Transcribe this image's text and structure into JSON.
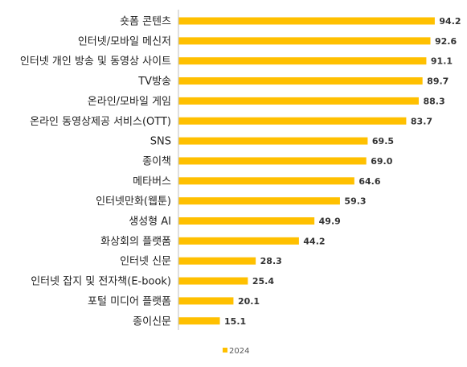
{
  "chart_data": {
    "type": "bar",
    "orientation": "horizontal",
    "categories": [
      "숏폼 콘텐츠",
      "인터넷/모바일 메신저",
      "인터넷 개인 방송 및 동영상 사이트",
      "TV방송",
      "온라인/모바일 게임",
      "온라인 동영상제공 서비스(OTT)",
      "SNS",
      "종이책",
      "메타버스",
      "인터넷만화(웹툰)",
      "생성형 AI",
      "화상회의 플랫폼",
      "인터넷 신문",
      "인터넷 잡지 및 전자책(E-book)",
      "포털 미디어 플랫폼",
      "종이신문"
    ],
    "series": [
      {
        "name": "2024",
        "values": [
          94.2,
          92.6,
          91.1,
          89.7,
          88.3,
          83.7,
          69.5,
          69.0,
          64.6,
          59.3,
          49.9,
          44.2,
          28.3,
          25.4,
          20.1,
          15.1
        ],
        "value_labels": [
          "94.2",
          "92.6",
          "91.1",
          "89.7",
          "88.3",
          "83.7",
          "69.5",
          "69.0",
          "64.6",
          "59.3",
          "49.9",
          "44.2",
          "28.3",
          "25.4",
          "20.1",
          "15.1"
        ]
      }
    ],
    "xlim": [
      0,
      100
    ],
    "legend": "bottom",
    "grid": false,
    "colors": {
      "bar": "#FFC000",
      "axis": "#BFBFBF"
    }
  }
}
